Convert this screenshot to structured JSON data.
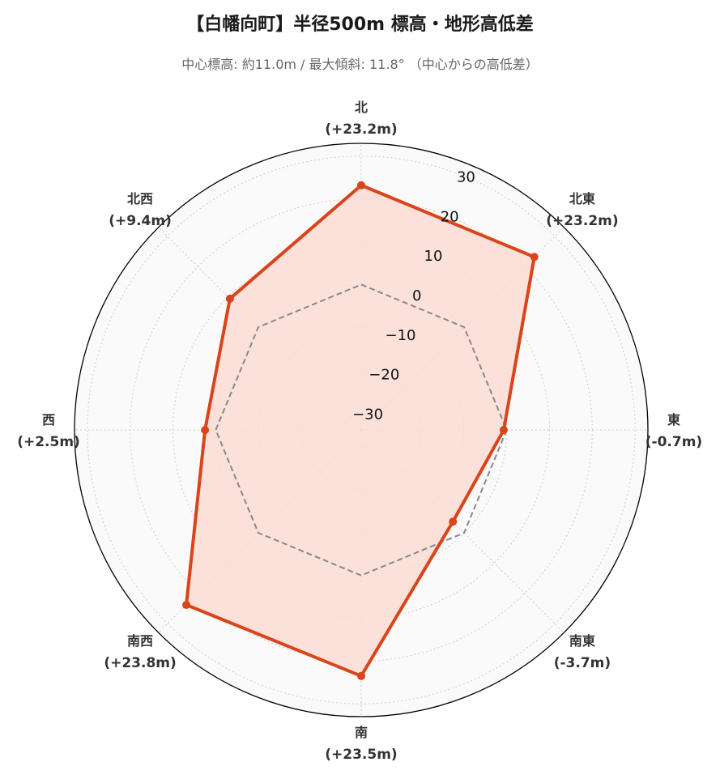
{
  "title": "【白幡向町】半径500m 標高・地形高低差",
  "subtitle": "中心標高: 約11.0m / 最大傾斜: 11.8° （中心からの高低差）",
  "colors": {
    "series": "#d9441a",
    "fill": "#fcdcd4",
    "baseline": "#888888",
    "grid": "#cccccc",
    "background": "#fafafa"
  },
  "chart_data": {
    "type": "radar",
    "categories": [
      "北",
      "北東",
      "東",
      "南東",
      "南",
      "南西",
      "西",
      "北西"
    ],
    "category_value_labels": [
      "(+23.2m)",
      "(+23.2m)",
      "(-0.7m)",
      "(-3.7m)",
      "(+23.5m)",
      "(+23.8m)",
      "(+2.5m)",
      "(+9.4m)"
    ],
    "series": [
      {
        "values": [
          23.2,
          23.2,
          -0.7,
          -3.7,
          23.5,
          23.8,
          2.5,
          9.4
        ]
      }
    ],
    "baseline_value": 0,
    "rlim": [
      -34,
      33
    ],
    "r_ticks": [
      -30,
      -20,
      -10,
      0,
      10,
      20,
      30
    ],
    "r_tick_labels": [
      "−30",
      "−20",
      "−10",
      "0",
      "10",
      "20",
      "30"
    ],
    "grid": true,
    "legend": false
  }
}
